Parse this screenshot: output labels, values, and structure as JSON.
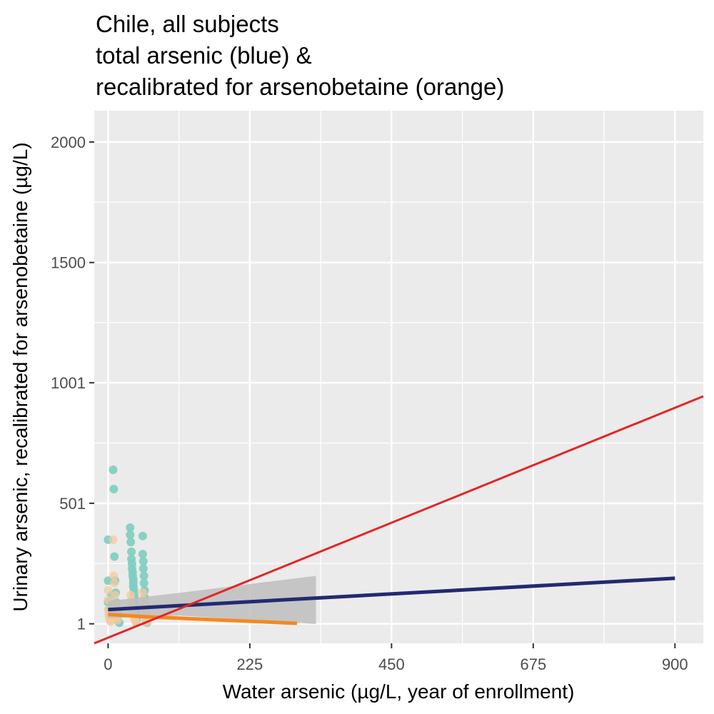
{
  "chart_data": {
    "type": "scatter",
    "title_lines": [
      "Chile, all subjects",
      "total arsenic (blue) &",
      "recalibrated for arsenobetaine (orange)"
    ],
    "xlabel": "Water arsenic (µg/L, year of enrollment)",
    "ylabel": "Urinary arsenic, recalibrated for arsenobetaine (µg/L)",
    "xlim": [
      -22,
      945
    ],
    "ylim": [
      -80,
      2130
    ],
    "x_ticks": [
      0,
      225,
      450,
      675,
      900
    ],
    "x_tick_labels": [
      "0",
      "225",
      "450",
      "675",
      "900"
    ],
    "y_ticks": [
      1,
      501,
      1001,
      1500,
      2000
    ],
    "y_tick_labels": [
      "1",
      "501",
      "1001",
      "1500",
      "2000"
    ],
    "grid": true,
    "legend": "none",
    "colors": {
      "panel": "#ebebeb",
      "grid": "#ffffff",
      "total_points": "#7ecdc1",
      "recal_points": "#f5caa0",
      "total_fit": "#232a72",
      "recal_fit": "#f5881f",
      "identity_line": "#e32626",
      "confidence_band": "#bebebe"
    },
    "series": [
      {
        "kind": "points",
        "color_key": "total_points",
        "points": [
          [
            0,
            350
          ],
          [
            0,
            180
          ],
          [
            0,
            90
          ],
          [
            2,
            60
          ],
          [
            3,
            40
          ],
          [
            5,
            120
          ],
          [
            6,
            75
          ],
          [
            8,
            640
          ],
          [
            9,
            560
          ],
          [
            10,
            280
          ],
          [
            11,
            180
          ],
          [
            12,
            130
          ],
          [
            13,
            90
          ],
          [
            14,
            50
          ],
          [
            15,
            30
          ],
          [
            16,
            10
          ],
          [
            18,
            5
          ],
          [
            35,
            400
          ],
          [
            35,
            370
          ],
          [
            36,
            340
          ],
          [
            37,
            300
          ],
          [
            37,
            270
          ],
          [
            38,
            250
          ],
          [
            38,
            230
          ],
          [
            39,
            215
          ],
          [
            39,
            200
          ],
          [
            40,
            185
          ],
          [
            40,
            170
          ],
          [
            40,
            155
          ],
          [
            41,
            140
          ],
          [
            41,
            125
          ],
          [
            42,
            110
          ],
          [
            42,
            95
          ],
          [
            43,
            80
          ],
          [
            43,
            65
          ],
          [
            44,
            50
          ],
          [
            44,
            35
          ],
          [
            45,
            20
          ],
          [
            45,
            10
          ],
          [
            55,
            365
          ],
          [
            55,
            290
          ],
          [
            56,
            260
          ],
          [
            56,
            230
          ],
          [
            57,
            200
          ],
          [
            57,
            170
          ],
          [
            58,
            140
          ],
          [
            58,
            110
          ],
          [
            59,
            80
          ],
          [
            59,
            60
          ],
          [
            60,
            40
          ],
          [
            60,
            20
          ],
          [
            61,
            10
          ],
          [
            62,
            5
          ]
        ]
      },
      {
        "kind": "points",
        "color_key": "recal_points",
        "points": [
          [
            0,
            140
          ],
          [
            0,
            100
          ],
          [
            0,
            60
          ],
          [
            1,
            40
          ],
          [
            2,
            25
          ],
          [
            3,
            15
          ],
          [
            4,
            10
          ],
          [
            8,
            350
          ],
          [
            9,
            200
          ],
          [
            10,
            170
          ],
          [
            11,
            120
          ],
          [
            12,
            80
          ],
          [
            13,
            50
          ],
          [
            14,
            30
          ],
          [
            15,
            15
          ],
          [
            36,
            120
          ],
          [
            37,
            100
          ],
          [
            38,
            80
          ],
          [
            39,
            60
          ],
          [
            40,
            45
          ],
          [
            41,
            35
          ],
          [
            42,
            25
          ],
          [
            43,
            15
          ],
          [
            44,
            8
          ],
          [
            45,
            4
          ],
          [
            55,
            130
          ],
          [
            56,
            100
          ],
          [
            57,
            75
          ],
          [
            58,
            55
          ],
          [
            59,
            40
          ],
          [
            60,
            28
          ],
          [
            61,
            18
          ],
          [
            62,
            8
          ]
        ]
      },
      {
        "kind": "band",
        "color_key": "confidence_band",
        "points": [
          [
            0,
            95
          ],
          [
            115,
            130
          ],
          [
            330,
            200
          ],
          [
            330,
            0
          ],
          [
            115,
            35
          ],
          [
            0,
            25
          ]
        ]
      },
      {
        "kind": "line",
        "name": "total arsenic",
        "color_key": "total_fit",
        "points": [
          [
            0,
            60
          ],
          [
            900,
            190
          ]
        ]
      },
      {
        "kind": "line",
        "name": "recalibrated for arsenobetaine",
        "color_key": "recal_fit",
        "points": [
          [
            0,
            40
          ],
          [
            60,
            30
          ],
          [
            300,
            3
          ]
        ]
      },
      {
        "kind": "line",
        "color_key": "identity_line",
        "points": [
          [
            -22,
            -80
          ],
          [
            945,
            945
          ]
        ]
      }
    ]
  }
}
